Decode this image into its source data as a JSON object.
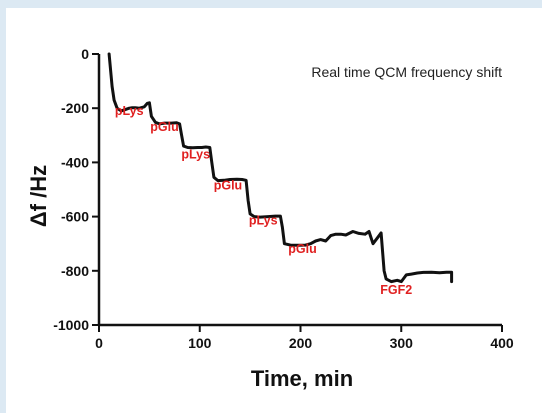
{
  "chart_data": {
    "type": "line",
    "title": "Real time QCM frequency shift",
    "xlabel": "Time, min",
    "ylabel": "Δf /Hz",
    "xlim": [
      0,
      400
    ],
    "ylim": [
      -1000,
      0
    ],
    "xticks": [
      0,
      100,
      200,
      300,
      400
    ],
    "yticks": [
      0,
      -200,
      -400,
      -600,
      -800,
      -1000
    ],
    "grid": false,
    "legend": "none",
    "line_color": "#111111",
    "annotation_color": "#e02020",
    "series": [
      {
        "x": [
          10,
          11,
          13,
          15,
          18,
          22,
          26,
          30,
          33,
          36,
          40,
          45,
          48,
          50,
          52,
          56,
          60,
          65,
          72,
          77,
          80,
          82,
          84,
          88,
          93,
          98,
          102,
          106,
          110,
          112,
          114,
          118,
          124,
          130,
          137,
          142,
          146,
          148,
          150,
          154,
          160,
          168,
          175,
          180,
          182,
          184,
          190,
          198,
          205,
          210,
          215,
          220,
          225,
          230,
          235,
          240,
          245,
          252,
          258,
          264,
          268,
          272,
          276,
          280,
          283,
          285,
          290,
          296,
          300,
          305,
          310,
          316,
          322,
          330,
          338,
          345,
          350,
          350
        ],
        "y": [
          0,
          -40,
          -120,
          -170,
          -200,
          -210,
          -205,
          -200,
          -198,
          -198,
          -200,
          -195,
          -182,
          -180,
          -230,
          -252,
          -258,
          -255,
          -255,
          -254,
          -258,
          -300,
          -340,
          -345,
          -346,
          -345,
          -345,
          -343,
          -345,
          -400,
          -455,
          -467,
          -466,
          -463,
          -462,
          -463,
          -466,
          -540,
          -590,
          -600,
          -602,
          -600,
          -598,
          -598,
          -640,
          -700,
          -705,
          -706,
          -705,
          -700,
          -690,
          -685,
          -690,
          -670,
          -665,
          -665,
          -668,
          -655,
          -662,
          -665,
          -655,
          -700,
          -680,
          -660,
          -800,
          -830,
          -840,
          -835,
          -840,
          -815,
          -812,
          -808,
          -806,
          -805,
          -807,
          -805,
          -805,
          -840
        ]
      }
    ],
    "annotations": [
      {
        "text": "pLys",
        "x": 30,
        "y": -225
      },
      {
        "text": "pGlu",
        "x": 65,
        "y": -285
      },
      {
        "text": "pLys",
        "x": 96,
        "y": -385
      },
      {
        "text": "pGlu",
        "x": 128,
        "y": -500
      },
      {
        "text": "pLys",
        "x": 163,
        "y": -630
      },
      {
        "text": "pGlu",
        "x": 202,
        "y": -735
      },
      {
        "text": "FGF2",
        "x": 295,
        "y": -885
      }
    ]
  }
}
